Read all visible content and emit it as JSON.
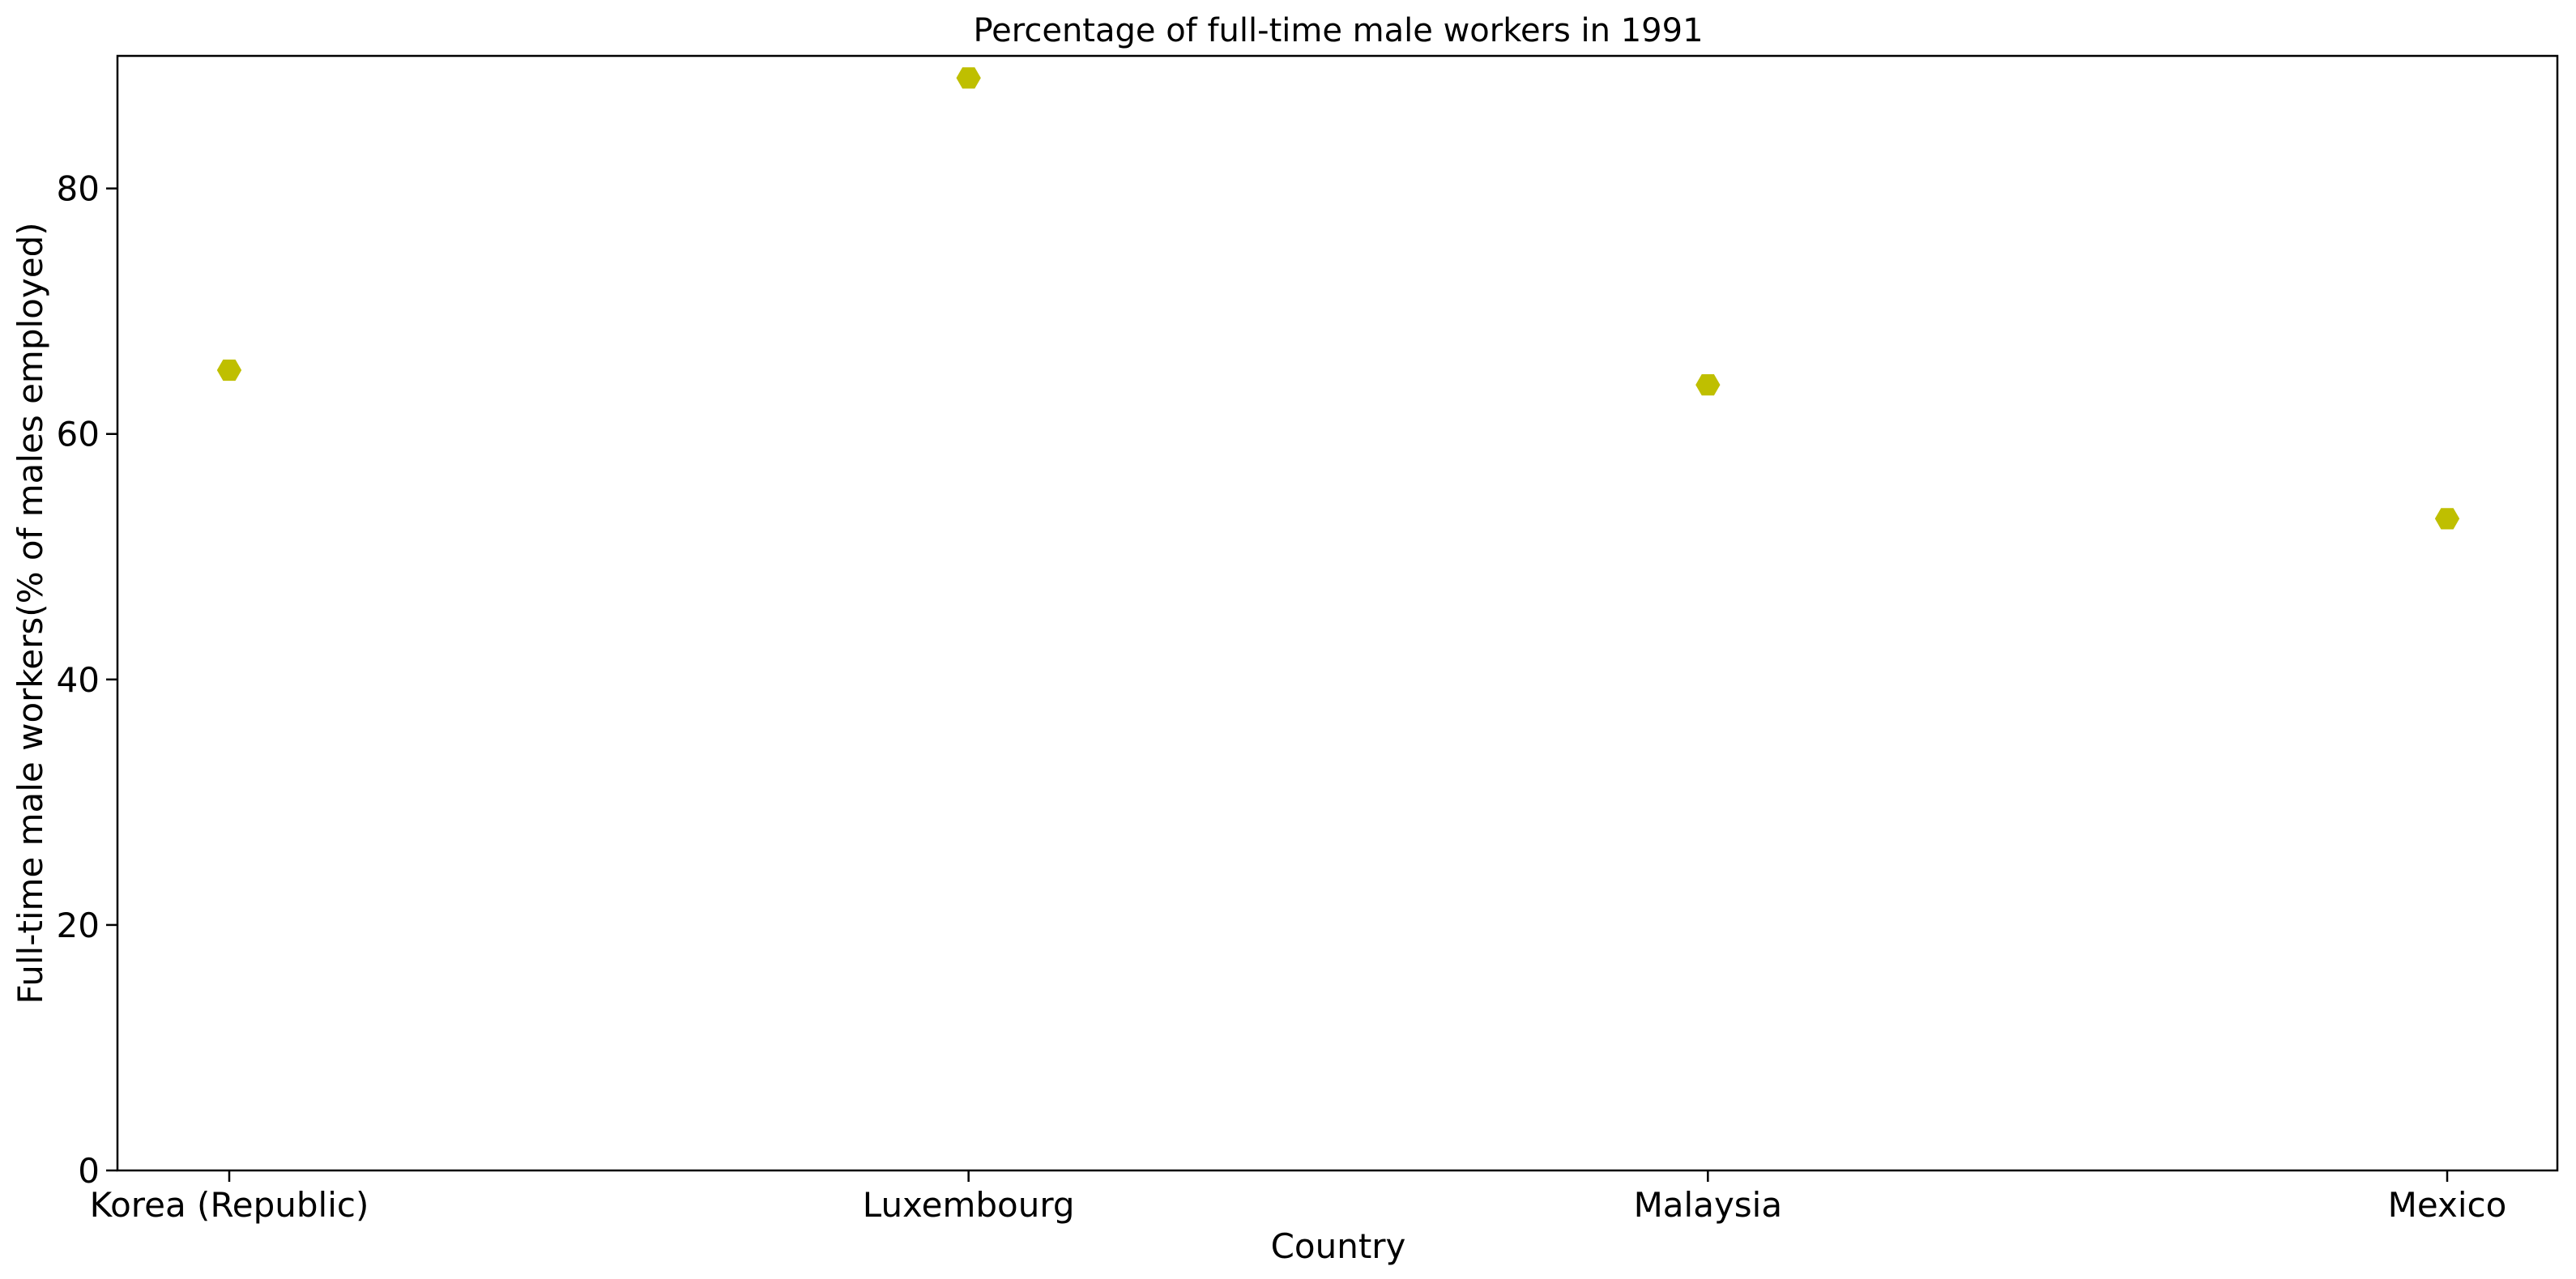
{
  "chart_data": {
    "type": "scatter",
    "title": "Percentage of full-time male workers in 1991",
    "xlabel": "Country",
    "ylabel": "Full-time male workers(% of males employed)",
    "categories": [
      "Korea (Republic)",
      "Luxembourg",
      "Malaysia",
      "Mexico"
    ],
    "values": [
      65.2,
      89.0,
      64.0,
      53.1
    ],
    "ylim": [
      0,
      90.8
    ],
    "yticks": [
      0,
      20,
      40,
      60,
      80
    ],
    "grid": false,
    "legend": "none",
    "marker": "hexagon",
    "marker_color": "#bfbf00"
  }
}
